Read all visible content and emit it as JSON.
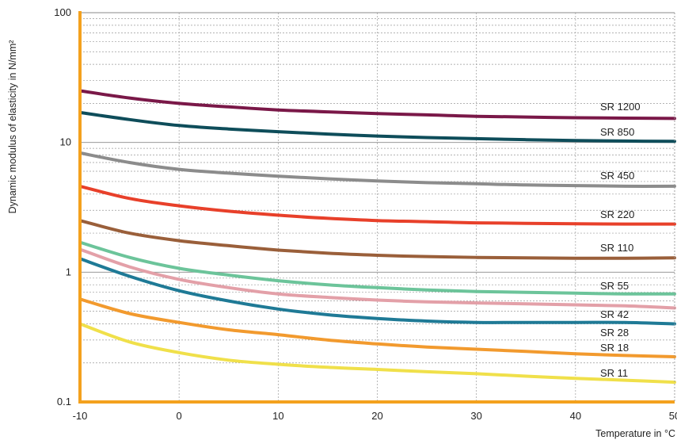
{
  "chart_data": {
    "type": "line",
    "x_scale": "linear",
    "y_scale": "log",
    "xlim": [
      -10,
      50
    ],
    "ylim": [
      0.1,
      100
    ],
    "xlabel": "Temperature in °C",
    "ylabel": "Dynamic modulus of elasticity in N/mm²",
    "x_ticks": [
      -10,
      0,
      10,
      20,
      30,
      40,
      50
    ],
    "x_tick_labels": [
      "-10",
      "0",
      "10",
      "20",
      "30",
      "40",
      "50"
    ],
    "y_ticks": [
      0.1,
      1,
      10,
      100
    ],
    "y_tick_labels": [
      "0.1",
      "1",
      "10",
      "100"
    ],
    "grid": true,
    "legend": "inline labels at right",
    "x": [
      -10,
      -5,
      0,
      5,
      10,
      15,
      20,
      25,
      30,
      35,
      40,
      45,
      50
    ],
    "series": [
      {
        "name": "SR 1200",
        "color": "#7a1848",
        "values": [
          25,
          22,
          20,
          18.8,
          17.8,
          17.2,
          16.7,
          16.3,
          15.9,
          15.7,
          15.5,
          15.4,
          15.3
        ]
      },
      {
        "name": "SR 850",
        "color": "#0e4d5a",
        "values": [
          17,
          15,
          13.5,
          12.7,
          12.1,
          11.6,
          11.2,
          10.9,
          10.7,
          10.5,
          10.35,
          10.25,
          10.2
        ]
      },
      {
        "name": "SR 450",
        "color": "#8c8c8c",
        "values": [
          8.3,
          7,
          6.2,
          5.8,
          5.5,
          5.25,
          5.05,
          4.9,
          4.8,
          4.7,
          4.65,
          4.6,
          4.6
        ]
      },
      {
        "name": "SR 220",
        "color": "#e8402a",
        "values": [
          4.6,
          3.7,
          3.25,
          2.95,
          2.75,
          2.6,
          2.5,
          2.45,
          2.4,
          2.38,
          2.36,
          2.35,
          2.35
        ]
      },
      {
        "name": "SR 110",
        "color": "#9a5f3a",
        "values": [
          2.5,
          2,
          1.75,
          1.6,
          1.48,
          1.4,
          1.35,
          1.32,
          1.3,
          1.29,
          1.28,
          1.28,
          1.29
        ]
      },
      {
        "name": "SR 55",
        "color": "#6cc49a",
        "values": [
          1.7,
          1.3,
          1.07,
          0.95,
          0.86,
          0.8,
          0.76,
          0.73,
          0.71,
          0.7,
          0.69,
          0.68,
          0.68
        ]
      },
      {
        "name": "SR 42",
        "color": "#e3a0a8",
        "values": [
          1.5,
          1.1,
          0.88,
          0.76,
          0.68,
          0.64,
          0.61,
          0.59,
          0.58,
          0.57,
          0.56,
          0.55,
          0.53
        ]
      },
      {
        "name": "SR 28",
        "color": "#1f7a96",
        "values": [
          1.27,
          0.93,
          0.72,
          0.6,
          0.52,
          0.47,
          0.44,
          0.42,
          0.41,
          0.41,
          0.41,
          0.41,
          0.4
        ]
      },
      {
        "name": "SR 18",
        "color": "#f29a2e",
        "values": [
          0.62,
          0.48,
          0.41,
          0.36,
          0.33,
          0.3,
          0.28,
          0.265,
          0.255,
          0.245,
          0.235,
          0.228,
          0.223
        ]
      },
      {
        "name": "SR 11",
        "color": "#f0e04a",
        "values": [
          0.4,
          0.29,
          0.24,
          0.21,
          0.195,
          0.185,
          0.178,
          0.171,
          0.165,
          0.158,
          0.152,
          0.147,
          0.142
        ]
      }
    ],
    "axis_color": "#f4a11e"
  }
}
